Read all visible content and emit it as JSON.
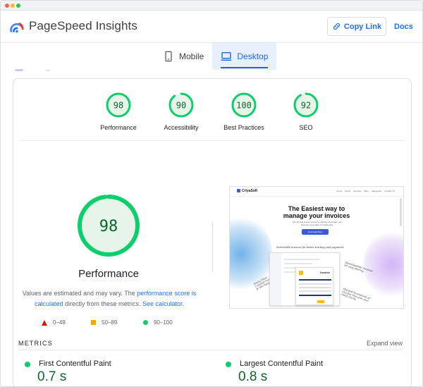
{
  "header": {
    "brand": "PageSpeed Insights",
    "copy_link": "Copy Link",
    "docs": "Docs"
  },
  "tabs": [
    {
      "label": "Mobile",
      "icon": "smartphone-icon",
      "active": false
    },
    {
      "label": "Desktop",
      "icon": "monitor-icon",
      "active": true
    }
  ],
  "scores": [
    {
      "label": "Performance",
      "value": "98",
      "fraction": 0.98
    },
    {
      "label": "Accessibility",
      "value": "90",
      "fraction": 0.9
    },
    {
      "label": "Best Practices",
      "value": "100",
      "fraction": 1.0
    },
    {
      "label": "SEO",
      "value": "92",
      "fraction": 0.92
    }
  ],
  "performance": {
    "score": "98",
    "fraction": 0.98,
    "title": "Performance",
    "note_1": "Values are estimated and may vary. The ",
    "note_link_1": "performance score is calculated",
    "note_2": " directly from these metrics. ",
    "note_link_2": "See calculator."
  },
  "legend": {
    "fail": "0–49",
    "average": "50–89",
    "pass": "90–100"
  },
  "screenshot": {
    "brand": "CriyaSoft",
    "nav": [
      "Home",
      "About",
      "Services",
      "Blog",
      "Categories",
      "Contact Us"
    ],
    "headline_1": "The Easiest way to",
    "headline_2": "manage your invoices",
    "sub": "The all-new Criya's invoicing software that helps your business grow without bottlenecks.",
    "cta": "Download Now",
    "annotation_1": "Searchable invoices for better tracking and payments",
    "annotation_2": "Downloadable invoices for easy sharing",
    "annotation_3": "Easily Filter Unlisted Invoices & Get Insights",
    "annotation_4": "Detailed breakdown of charges that give your client clarity",
    "invoice_title": "Invoice"
  },
  "metrics": {
    "label": "METRICS",
    "expand": "Expand view",
    "items": [
      {
        "name": "First Contentful Paint",
        "value": "0.7 s"
      },
      {
        "name": "Largest Contentful Paint",
        "value": "0.8 s"
      }
    ]
  },
  "colors": {
    "pass": "#0cce6b",
    "pass_text": "#0d652d",
    "pass_bg": "#e6f4ea",
    "average": "#ffa400",
    "fail": "#eb0f00",
    "accent": "#1a73e8"
  }
}
